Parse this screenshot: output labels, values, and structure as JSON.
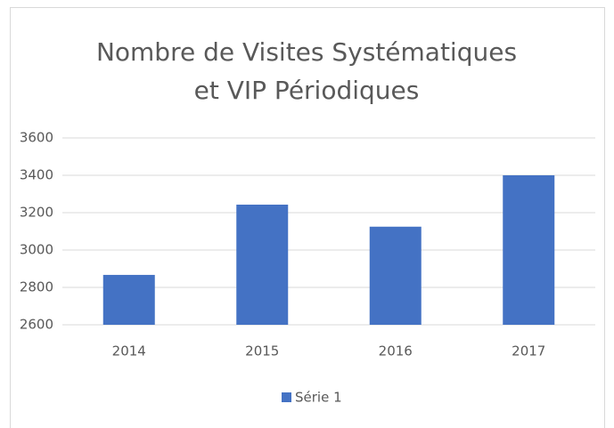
{
  "chart_data": {
    "type": "bar",
    "title": [
      "Nombre de Visites Systématiques",
      "et VIP Périodiques"
    ],
    "categories": [
      "2014",
      "2015",
      "2016",
      "2017"
    ],
    "series": [
      {
        "name": "Série 1",
        "color": "#4472c4",
        "values": [
          2867,
          3243,
          3125,
          3400
        ]
      }
    ],
    "ylim": [
      2600,
      3600
    ],
    "yticks": [
      2600,
      2800,
      3000,
      3200,
      3400,
      3600
    ],
    "grid": true,
    "legend": "bottom"
  }
}
